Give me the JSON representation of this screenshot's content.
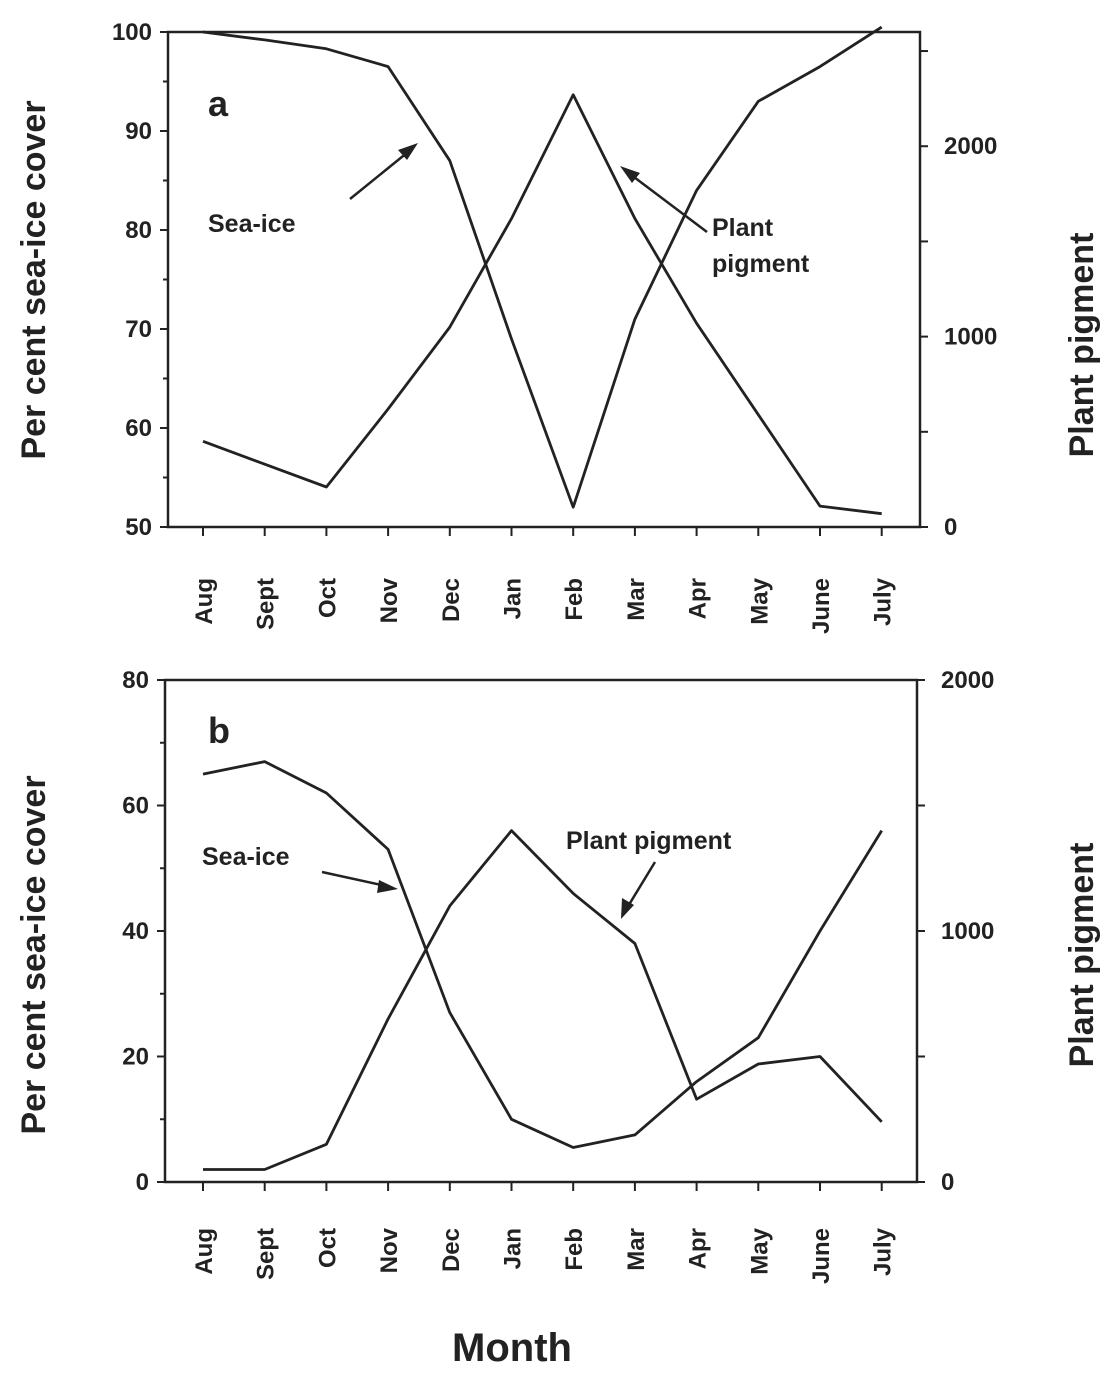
{
  "chart_data": [
    {
      "type": "line",
      "panel_label": "a",
      "x": [
        "Aug",
        "Sept",
        "Oct",
        "Nov",
        "Dec",
        "Jan",
        "Feb",
        "Mar",
        "Apr",
        "May",
        "June",
        "July"
      ],
      "ylabel": "Per cent sea-ice cover",
      "ylabel_right": "Plant pigment",
      "ylim": [
        50,
        100
      ],
      "ylim_right": [
        0,
        2600
      ],
      "yticks": [
        50,
        60,
        70,
        80,
        90,
        100
      ],
      "yticks_right": [
        0,
        1000,
        2000
      ],
      "series": [
        {
          "name": "Sea-ice",
          "axis": "left",
          "values": [
            100,
            99.2,
            98.3,
            96.5,
            87,
            69,
            52,
            71,
            84,
            93,
            96.5,
            100.5
          ]
        },
        {
          "name": "Plant pigment",
          "axis": "right",
          "values": [
            450,
            330,
            210,
            620,
            1050,
            1620,
            2270,
            1620,
            1070,
            590,
            110,
            70
          ]
        }
      ],
      "annotations": [
        {
          "text": "Sea-ice"
        },
        {
          "text_lines": [
            "Plant",
            "pigment"
          ]
        }
      ]
    },
    {
      "type": "line",
      "panel_label": "b",
      "x": [
        "Aug",
        "Sept",
        "Oct",
        "Nov",
        "Dec",
        "Jan",
        "Feb",
        "Mar",
        "Apr",
        "May",
        "June",
        "July"
      ],
      "xlabel": "Month",
      "ylabel": "Per cent sea-ice cover",
      "ylabel_right": "Plant pigment",
      "ylim": [
        0,
        80
      ],
      "ylim_right": [
        0,
        2000
      ],
      "yticks": [
        0,
        20,
        40,
        60,
        80
      ],
      "yticks_right": [
        0,
        1000,
        2000
      ],
      "series": [
        {
          "name": "Sea-ice",
          "axis": "left",
          "values": [
            65,
            67,
            62,
            53,
            27,
            10,
            5.5,
            7.5,
            16,
            23,
            40,
            56
          ]
        },
        {
          "name": "Plant pigment",
          "axis": "right",
          "values": [
            50,
            50,
            150,
            650,
            1100,
            1400,
            1150,
            950,
            330,
            470,
            500,
            240
          ]
        }
      ],
      "annotations": [
        {
          "text": "Sea-ice"
        },
        {
          "text": "Plant pigment"
        }
      ]
    }
  ]
}
